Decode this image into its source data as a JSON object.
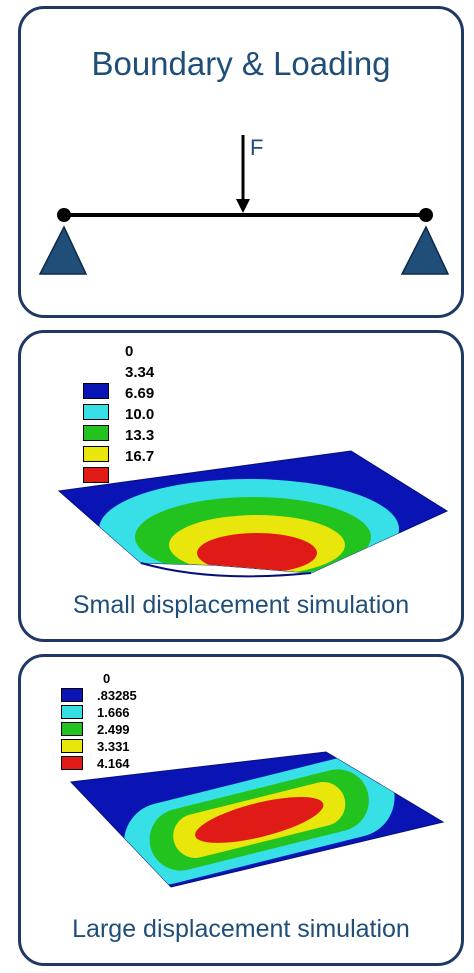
{
  "boundary_panel": {
    "title": "Boundary & Loading",
    "force_label": "F"
  },
  "small_panel": {
    "caption": "Small displacement simulation",
    "legend": [
      {
        "value": "0",
        "color": ""
      },
      {
        "value": "3.34",
        "color": "#0a14b4"
      },
      {
        "value": "6.69",
        "color": "#37e0e6"
      },
      {
        "value": "10.0",
        "color": "#22c21f"
      },
      {
        "value": "13.3",
        "color": "#e8e60b"
      },
      {
        "value": "16.7",
        "color": "#e01a16"
      }
    ]
  },
  "large_panel": {
    "caption": "Large displacement simulation",
    "legend": [
      {
        "value": "0",
        "color": ""
      },
      {
        "value": ".83285",
        "color": "#0a14b4"
      },
      {
        "value": "1.666",
        "color": "#37e0e6"
      },
      {
        "value": "2.499",
        "color": "#22c21f"
      },
      {
        "value": "3.331",
        "color": "#e8e60b"
      },
      {
        "value": "4.164",
        "color": "#e01a16"
      }
    ]
  },
  "colors": {
    "panel_border": "#1f3864",
    "support": "#1f4e79",
    "blue": "#0a14b4",
    "cyan": "#37e0e6",
    "green": "#22c21f",
    "yellow": "#e8e60b",
    "red": "#e01a16"
  }
}
